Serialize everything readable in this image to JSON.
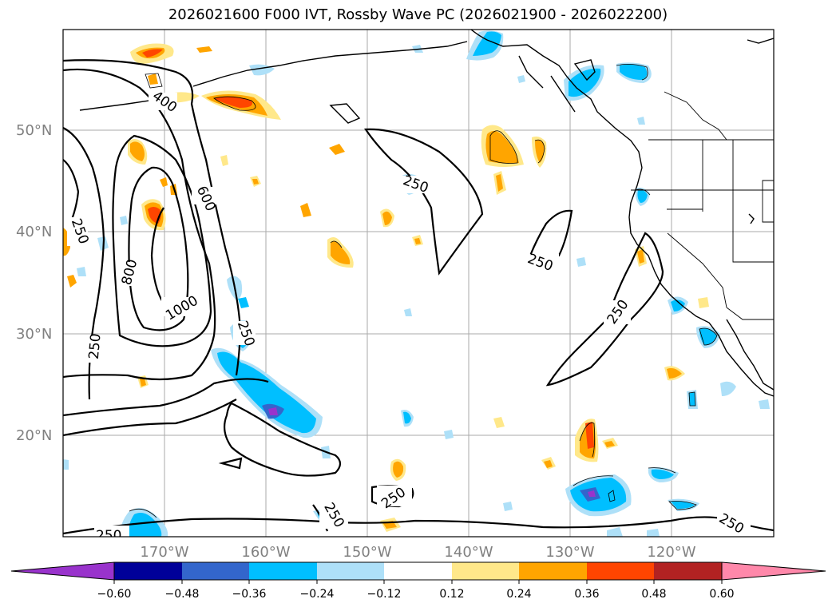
{
  "title": "2026021600 F000 IVT, Rossby Wave PC (2026021900 - 2026022200)",
  "lat_labels": [
    "50°N",
    "40°N",
    "30°N",
    "20°N"
  ],
  "lon_labels": [
    "170°W",
    "160°W",
    "150°W",
    "140°W",
    "130°W",
    "120°W"
  ],
  "colorbar": {
    "ticks": [
      "−0.60",
      "−0.48",
      "−0.36",
      "−0.24",
      "−0.12",
      "0.12",
      "0.24",
      "0.36",
      "0.48",
      "0.60"
    ],
    "colors": [
      "#9933cc",
      "#000099",
      "#3366cc",
      "#00bfff",
      "#aee0f8",
      "#ffffff",
      "#ffe88a",
      "#ffa500",
      "#ff4500",
      "#b22222",
      "#ff88aa"
    ]
  },
  "contour_labels": [
    "400",
    "600",
    "800",
    "1000",
    "250",
    "250",
    "250",
    "250",
    "250",
    "250",
    "250",
    "250",
    "250",
    "250"
  ],
  "colors": {
    "contour": "#000000",
    "land_outline": "#000000",
    "grid": "#aaaaaa"
  }
}
